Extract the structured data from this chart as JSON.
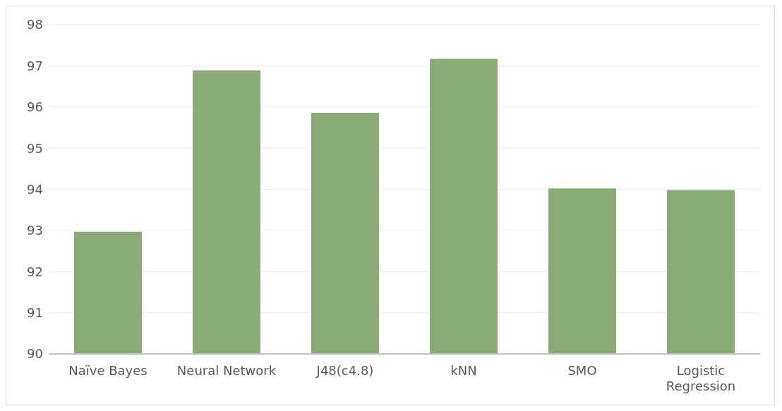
{
  "chart_data": {
    "type": "bar",
    "categories": [
      "Naïve Bayes",
      "Neural Network",
      "J48(c4.8)",
      "kNN",
      "SMO",
      "Logistic Regression"
    ],
    "values": [
      92.97,
      96.89,
      95.86,
      97.17,
      94.02,
      93.98
    ],
    "color": "#84a66e",
    "ylim": [
      90,
      98
    ],
    "yticks": [
      90,
      91,
      92,
      93,
      94,
      95,
      96,
      97,
      98
    ],
    "grid": "y"
  }
}
